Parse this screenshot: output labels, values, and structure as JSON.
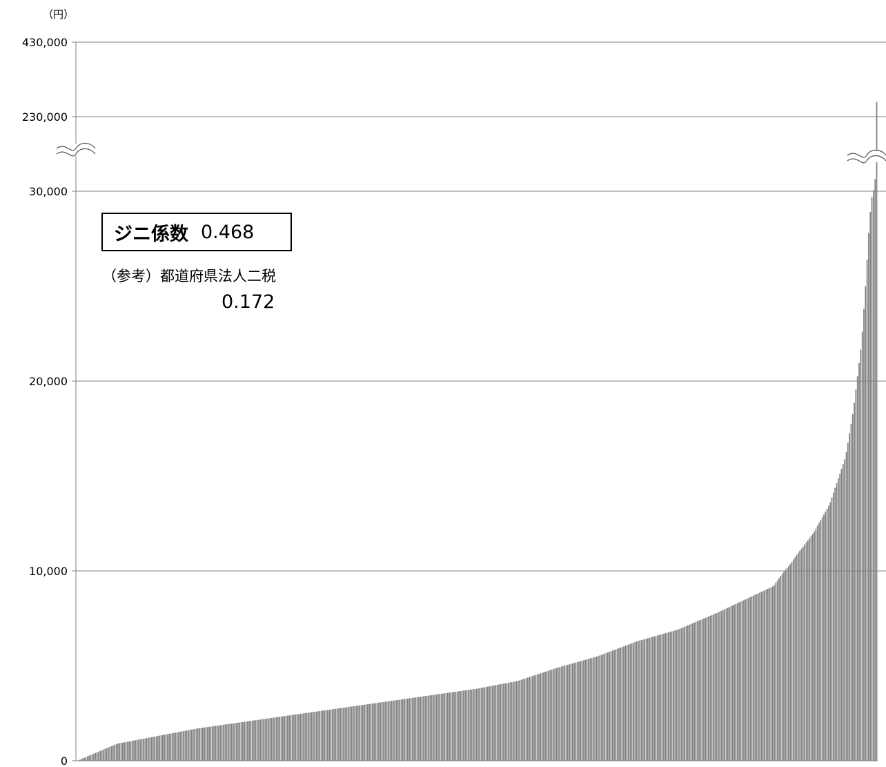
{
  "chart_data": {
    "type": "bar",
    "unit_label": "（円）",
    "y_ticks": [
      "0",
      "10,000",
      "20,000",
      "30,000",
      "230,000",
      "430,000"
    ],
    "y_break": {
      "lower_max": 30000,
      "upper_ticks": [
        230000,
        430000
      ]
    },
    "grid": true,
    "bar_count": 500,
    "curve_points": [
      [
        0,
        0
      ],
      [
        0.05,
        900
      ],
      [
        0.15,
        1700
      ],
      [
        0.25,
        2300
      ],
      [
        0.35,
        2900
      ],
      [
        0.45,
        3500
      ],
      [
        0.5,
        3800
      ],
      [
        0.55,
        4200
      ],
      [
        0.6,
        4900
      ],
      [
        0.65,
        5500
      ],
      [
        0.7,
        6300
      ],
      [
        0.75,
        6900
      ],
      [
        0.8,
        7800
      ],
      [
        0.85,
        8800
      ],
      [
        0.87,
        9200
      ],
      [
        0.88,
        9800
      ],
      [
        0.89,
        10300
      ],
      [
        0.9,
        10900
      ],
      [
        0.92,
        12000
      ],
      [
        0.94,
        13500
      ],
      [
        0.96,
        16000
      ],
      [
        0.97,
        18500
      ],
      [
        0.98,
        22000
      ],
      [
        0.985,
        25000
      ],
      [
        0.99,
        28500
      ],
      [
        0.995,
        30500
      ],
      [
        1.0,
        45000
      ]
    ],
    "bar_color": "#7f7f7f"
  },
  "annotations": {
    "gini_label": "ジニ係数",
    "gini_value": "0.468",
    "reference_label": "（参考）都道府県法人二税",
    "reference_value": "0.172"
  }
}
